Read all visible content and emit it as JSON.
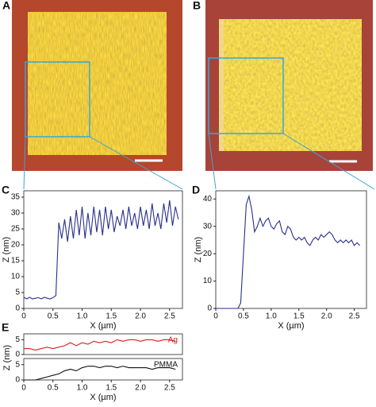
{
  "panels": {
    "a": "A",
    "b": "B"
  },
  "chart_data": [
    {
      "type": "line",
      "panel_label": "C",
      "xlabel": "X (µm)",
      "ylabel": "Z (nm)",
      "x": [
        0,
        0.05,
        0.1,
        0.15,
        0.2,
        0.25,
        0.3,
        0.35,
        0.4,
        0.45,
        0.5,
        0.55,
        0.6,
        0.65,
        0.7,
        0.75,
        0.8,
        0.85,
        0.9,
        0.95,
        1.0,
        1.05,
        1.1,
        1.15,
        1.2,
        1.25,
        1.3,
        1.35,
        1.4,
        1.45,
        1.5,
        1.55,
        1.6,
        1.65,
        1.7,
        1.75,
        1.8,
        1.85,
        1.9,
        1.95,
        2.0,
        2.05,
        2.1,
        2.15,
        2.2,
        2.25,
        2.3,
        2.35,
        2.4,
        2.45,
        2.5,
        2.55,
        2.6,
        2.65
      ],
      "series": [
        {
          "color": "#2a2f8c",
          "values": [
            3.5,
            3,
            3.5,
            3,
            3.2,
            3.4,
            3,
            3.5,
            3.2,
            3,
            3.4,
            4,
            27,
            22,
            28,
            21,
            29,
            22,
            31,
            23,
            32,
            22,
            30,
            23,
            32,
            24,
            31,
            23,
            32,
            25,
            31,
            24,
            29,
            26,
            31,
            25,
            32,
            26,
            30,
            25,
            32,
            26,
            31,
            25,
            33,
            26,
            30,
            25,
            33,
            27,
            34,
            26,
            32,
            28
          ]
        }
      ],
      "xlim": [
        0,
        2.72
      ],
      "ylim": [
        0,
        37
      ],
      "xticks": [
        0,
        0.5,
        {
          "value": 1,
          "label": "1.0"
        },
        1.5,
        {
          "value": 2,
          "label": "2.0"
        },
        2.5
      ],
      "yticks": [
        0,
        5,
        10,
        15,
        20,
        25,
        30,
        35
      ]
    },
    {
      "type": "line",
      "panel_label": "D",
      "xlabel": "X (µm)",
      "ylabel": "Z (nm)",
      "x": [
        0,
        0.05,
        0.1,
        0.15,
        0.2,
        0.25,
        0.3,
        0.35,
        0.4,
        0.45,
        0.5,
        0.55,
        0.6,
        0.65,
        0.7,
        0.75,
        0.8,
        0.85,
        0.9,
        0.95,
        1.0,
        1.05,
        1.1,
        1.15,
        1.2,
        1.25,
        1.3,
        1.35,
        1.4,
        1.45,
        1.5,
        1.55,
        1.6,
        1.65,
        1.7,
        1.75,
        1.8,
        1.85,
        1.9,
        1.95,
        2.0,
        2.05,
        2.1,
        2.15,
        2.2,
        2.25,
        2.3,
        2.35,
        2.4,
        2.45,
        2.5,
        2.55,
        2.6
      ],
      "series": [
        {
          "color": "#2a2f8c",
          "values": [
            0,
            0,
            0,
            0,
            0,
            0,
            0,
            0,
            0,
            2,
            20,
            38,
            41,
            36,
            28,
            30,
            33,
            30,
            32,
            33,
            30,
            29,
            31,
            32,
            28,
            27,
            30,
            29,
            26,
            25,
            26,
            25,
            26,
            24,
            23,
            25,
            26,
            25,
            27,
            26,
            27,
            28,
            27,
            25,
            24,
            25,
            24,
            25,
            24,
            25,
            23,
            24,
            23
          ]
        }
      ],
      "xlim": [
        0,
        2.72
      ],
      "ylim": [
        0,
        43
      ],
      "xticks": [
        0,
        0.5,
        {
          "value": 1,
          "label": "1.0"
        },
        1.5,
        {
          "value": 2,
          "label": "2.0"
        },
        2.5
      ],
      "yticks": [
        0,
        10,
        20,
        30,
        40
      ]
    },
    {
      "type": "line",
      "panel_label": "E",
      "ylabel": "Z (nm)",
      "x": [
        0,
        0.1,
        0.2,
        0.3,
        0.4,
        0.5,
        0.6,
        0.7,
        0.8,
        0.9,
        1.0,
        1.1,
        1.2,
        1.3,
        1.4,
        1.5,
        1.6,
        1.7,
        1.8,
        1.9,
        2.0,
        2.1,
        2.2,
        2.3,
        2.4,
        2.5,
        2.6
      ],
      "series": [
        {
          "name": "Ag",
          "color": "#d42020",
          "values": [
            2,
            2,
            1.5,
            2,
            2.5,
            2,
            2.5,
            3,
            4,
            3,
            4,
            3.5,
            4.5,
            4,
            4.5,
            4,
            5,
            4.5,
            5,
            5,
            4.5,
            5,
            5,
            4.5,
            5,
            5,
            4.5
          ]
        }
      ],
      "xlim": [
        0,
        2.72
      ],
      "ylim": [
        0,
        7
      ],
      "yticks": [
        0,
        5
      ]
    },
    {
      "type": "line",
      "xlabel": "X (µm)",
      "x": [
        0,
        0.1,
        0.2,
        0.3,
        0.4,
        0.5,
        0.6,
        0.7,
        0.8,
        0.9,
        1.0,
        1.1,
        1.2,
        1.3,
        1.4,
        1.5,
        1.6,
        1.7,
        1.8,
        1.9,
        2.0,
        2.1,
        2.2,
        2.3,
        2.4,
        2.5,
        2.6
      ],
      "series": [
        {
          "name": "PMMA",
          "color": "#111111",
          "values": [
            0,
            0,
            0,
            0.5,
            1,
            1.5,
            2,
            3,
            3.5,
            3,
            4,
            4.5,
            4.5,
            4,
            4.5,
            4.5,
            4,
            4.5,
            4,
            4,
            4,
            4,
            3.5,
            4,
            4,
            4,
            3.5
          ]
        }
      ],
      "xlim": [
        0,
        2.72
      ],
      "ylim": [
        0,
        7
      ],
      "xticks": [
        0,
        0.5,
        {
          "value": 1,
          "label": "1.0"
        },
        1.5,
        {
          "value": 2,
          "label": "2.0"
        },
        2.5
      ],
      "yticks": [
        0,
        5
      ]
    }
  ]
}
